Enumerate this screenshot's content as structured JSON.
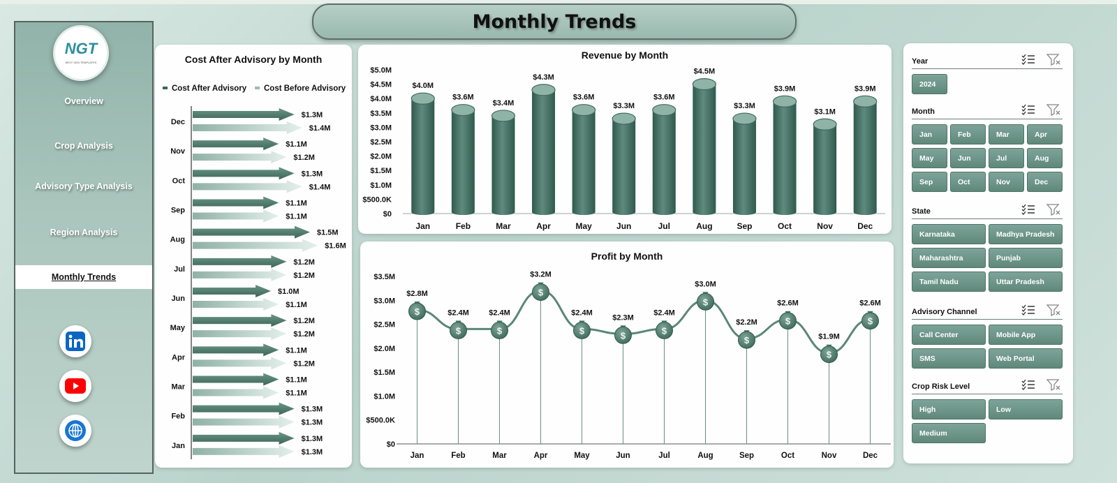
{
  "title": "Monthly Trends",
  "logo": {
    "text": "NGT",
    "subtext": "NEXT GEN TEMPLATES"
  },
  "nav": [
    "Overview",
    "Crop Analysis",
    "Advisory Type Analysis",
    "Region Analysis",
    "Monthly Trends"
  ],
  "active_nav": "Monthly Trends",
  "social": [
    {
      "name": "linkedin-icon",
      "color": "#0a66c2",
      "label": "in"
    },
    {
      "name": "youtube-icon",
      "color": "#ff0000",
      "label": ""
    },
    {
      "name": "globe-icon",
      "color": "#1976d2",
      "label": ""
    }
  ],
  "colors": {
    "primary": "#4f7d70",
    "light": "#c9ddd6",
    "accent": "#2c8f9e"
  },
  "chart_data": [
    {
      "type": "bar",
      "orientation": "horizontal",
      "title": "Cost After Advisory by Month",
      "categories": [
        "Dec",
        "Nov",
        "Oct",
        "Sep",
        "Aug",
        "Jul",
        "Jun",
        "May",
        "Apr",
        "Mar",
        "Feb",
        "Jan"
      ],
      "series": [
        {
          "name": "Cost After Advisory",
          "values": [
            1.3,
            1.1,
            1.3,
            1.1,
            1.5,
            1.2,
            1.0,
            1.2,
            1.1,
            1.1,
            1.3,
            1.3
          ],
          "labels": [
            "$1.3M",
            "$1.1M",
            "$1.3M",
            "$1.1M",
            "$1.5M",
            "$1.2M",
            "$1.0M",
            "$1.2M",
            "$1.1M",
            "$1.1M",
            "$1.3M",
            "$1.3M"
          ]
        },
        {
          "name": "Cost Before Advisory",
          "values": [
            1.4,
            1.2,
            1.4,
            1.1,
            1.6,
            1.2,
            1.1,
            1.2,
            1.2,
            1.1,
            1.3,
            1.3
          ],
          "labels": [
            "$1.4M",
            "$1.2M",
            "$1.4M",
            "$1.1M",
            "$1.6M",
            "$1.2M",
            "$1.1M",
            "$1.2M",
            "$1.2M",
            "$1.1M",
            "$1.3M",
            "$1.3M"
          ]
        }
      ],
      "legend": "top"
    },
    {
      "type": "bar",
      "title": "Revenue by Month",
      "categories": [
        "Jan",
        "Feb",
        "Mar",
        "Apr",
        "May",
        "Jun",
        "Jul",
        "Aug",
        "Sep",
        "Oct",
        "Nov",
        "Dec"
      ],
      "values": [
        4.0,
        3.6,
        3.4,
        4.3,
        3.6,
        3.3,
        3.6,
        4.5,
        3.3,
        3.9,
        3.1,
        3.9
      ],
      "labels": [
        "$4.0M",
        "$3.6M",
        "$3.4M",
        "$4.3M",
        "$3.6M",
        "$3.3M",
        "$3.6M",
        "$4.5M",
        "$3.3M",
        "$3.9M",
        "$3.1M",
        "$3.9M"
      ],
      "ylim": [
        0,
        5.0
      ],
      "yticks": [
        "$0",
        "$500.0K",
        "$1.0M",
        "$1.5M",
        "$2.0M",
        "$2.5M",
        "$3.0M",
        "$3.5M",
        "$4.0M",
        "$4.5M",
        "$5.0M"
      ]
    },
    {
      "type": "line",
      "title": "Profit by Month",
      "categories": [
        "Jan",
        "Feb",
        "Mar",
        "Apr",
        "May",
        "Jun",
        "Jul",
        "Aug",
        "Sep",
        "Oct",
        "Nov",
        "Dec"
      ],
      "values": [
        2.8,
        2.4,
        2.4,
        3.2,
        2.4,
        2.3,
        2.4,
        3.0,
        2.2,
        2.6,
        1.9,
        2.6
      ],
      "labels": [
        "$2.8M",
        "$2.4M",
        "$2.4M",
        "$3.2M",
        "$2.4M",
        "$2.3M",
        "$2.4M",
        "$3.0M",
        "$2.2M",
        "$2.6M",
        "$1.9M",
        "$2.6M"
      ],
      "ylim": [
        0,
        3.5
      ],
      "yticks": [
        "$0",
        "$500.0K",
        "$1.0M",
        "$1.5M",
        "$2.0M",
        "$2.5M",
        "$3.0M",
        "$3.5M"
      ]
    }
  ],
  "slicers": [
    {
      "label": "Year",
      "items": [
        "2024"
      ],
      "cols": 4
    },
    {
      "label": "Month",
      "items": [
        "Jan",
        "Feb",
        "Mar",
        "Apr",
        "May",
        "Jun",
        "Jul",
        "Aug",
        "Sep",
        "Oct",
        "Nov",
        "Dec"
      ],
      "cols": 4
    },
    {
      "label": "State",
      "items": [
        "Karnataka",
        "Madhya Pradesh",
        "Maharashtra",
        "Punjab",
        "Tamil Nadu",
        "Uttar Pradesh"
      ],
      "cols": 2
    },
    {
      "label": "Advisory Channel",
      "items": [
        "Call Center",
        "Mobile App",
        "SMS",
        "Web Portal"
      ],
      "cols": 2
    },
    {
      "label": "Crop Risk Level",
      "items": [
        "High",
        "Low",
        "Medium"
      ],
      "cols": 2
    }
  ]
}
